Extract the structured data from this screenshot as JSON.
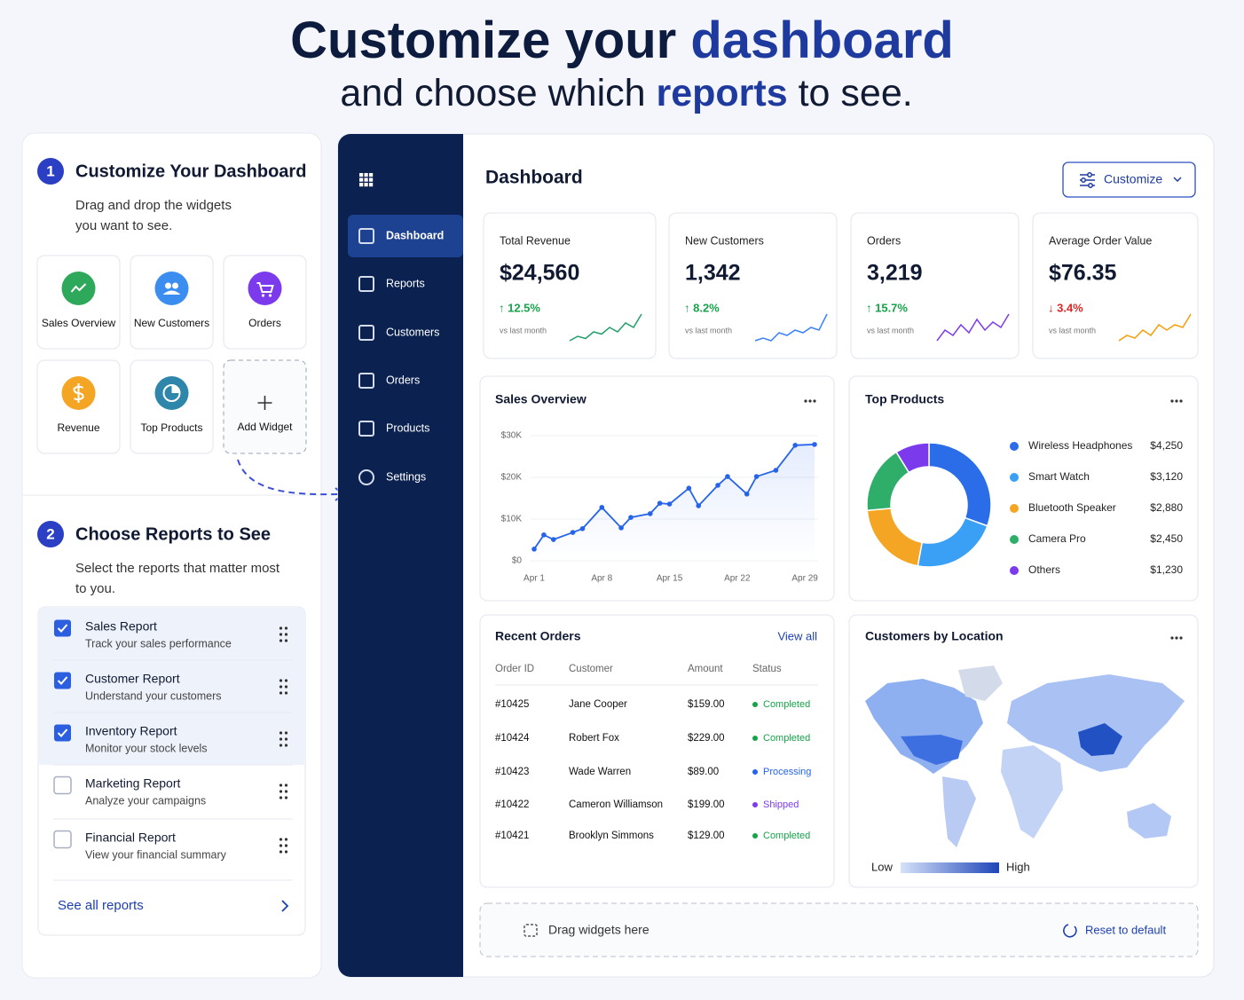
{
  "header": {
    "title_start": "Customize your ",
    "title_highlight": "dashboard",
    "subtitle_start": "and choose which ",
    "subtitle_highlight": "reports",
    "subtitle_end": " to see."
  },
  "steps": [
    {
      "number": "1",
      "title": "Customize Your Dashboard",
      "description": [
        "Drag and drop the widgets",
        "you want to see."
      ],
      "widgets": [
        {
          "label": "Sales Overview",
          "color": "#2ea85a"
        },
        {
          "label": "New Customers",
          "color": "#3b8ef0"
        },
        {
          "label": "Orders",
          "color": "#7c3aed"
        },
        {
          "label": "Revenue",
          "color": "#f5a524"
        },
        {
          "label": "Top Products",
          "color": "#2e86ab"
        }
      ],
      "add_widget": "Add Widget"
    },
    {
      "number": "2",
      "title": "Choose Reports to See",
      "description": [
        "Select the reports that matter most",
        "to you."
      ],
      "reports": [
        {
          "name": "Sales Report",
          "description": "Track your sales performance",
          "checked": true
        },
        {
          "name": "Customer Report",
          "description": "Understand your customers",
          "checked": true
        },
        {
          "name": "Inventory Report",
          "description": "Monitor your stock levels",
          "checked": true
        },
        {
          "name": "Marketing Report",
          "description": "Analyze your campaigns",
          "checked": false
        },
        {
          "name": "Financial Report",
          "description": "View your financial summary",
          "checked": false
        }
      ],
      "see_all": "See all reports"
    }
  ],
  "sidebar": {
    "items": [
      {
        "label": "Dashboard",
        "active": true
      },
      {
        "label": "Reports",
        "active": false
      },
      {
        "label": "Customers",
        "active": false
      },
      {
        "label": "Orders",
        "active": false
      },
      {
        "label": "Products",
        "active": false
      },
      {
        "label": "Settings",
        "active": false
      }
    ]
  },
  "dashboard": {
    "title": "Dashboard",
    "customize": "Customize",
    "kpis": [
      {
        "label": "Total Revenue",
        "value": "$24,560",
        "change": "↑ 12.5%",
        "change_color": "#16a34a",
        "note": "vs last month",
        "trend": [
          3,
          4,
          3.5,
          5,
          4.5,
          6,
          5,
          7,
          6,
          9
        ],
        "trend_color": "#22a06b"
      },
      {
        "label": "New Customers",
        "value": "1,342",
        "change": "↑ 8.2%",
        "change_color": "#16a34a",
        "note": "vs last month",
        "trend": [
          3,
          3.5,
          3,
          4.5,
          4,
          5,
          4.5,
          5.5,
          5,
          8
        ],
        "trend_color": "#3b82f6"
      },
      {
        "label": "Orders",
        "value": "3,219",
        "change": "↑ 15.7%",
        "change_color": "#16a34a",
        "note": "vs last month",
        "trend": [
          3,
          5,
          4,
          6,
          4.5,
          7,
          5,
          6.5,
          5.5,
          8
        ],
        "trend_color": "#7c3aed"
      },
      {
        "label": "Average Order Value",
        "value": "$76.35",
        "change": "↓ 3.4%",
        "change_color": "#dc2626",
        "note": "vs last month",
        "trend": [
          3,
          4,
          3.5,
          5,
          4,
          6,
          5,
          6,
          5.5,
          8
        ],
        "trend_color": "#f59e0b"
      }
    ],
    "sales_overview": {
      "type": "line",
      "title": "Sales Overview",
      "color": "#2563eb",
      "grid": true,
      "x": [
        1,
        2,
        3,
        5,
        6,
        8,
        10,
        11,
        13,
        14,
        15,
        17,
        18,
        20,
        21,
        23,
        24,
        26,
        28,
        30
      ],
      "values": [
        2800,
        6200,
        5100,
        6800,
        7700,
        12800,
        7900,
        10400,
        11300,
        13800,
        13600,
        17400,
        13200,
        18100,
        20200,
        16000,
        20200,
        21700,
        27700,
        27900
      ],
      "xlim": [
        1,
        30
      ],
      "xticks": [
        {
          "value": 1,
          "label": "Apr 1"
        },
        {
          "value": 8,
          "label": "Apr 8"
        },
        {
          "value": 15,
          "label": "Apr 15"
        },
        {
          "value": 22,
          "label": "Apr 22"
        },
        {
          "value": 29,
          "label": "Apr 29"
        }
      ],
      "ylim": [
        0,
        30000
      ],
      "yticks": [
        {
          "value": 0,
          "label": "$0"
        },
        {
          "value": 10000,
          "label": "$10K"
        },
        {
          "value": 20000,
          "label": "$20K"
        },
        {
          "value": 30000,
          "label": "$30K"
        }
      ]
    },
    "top_products": {
      "type": "pie",
      "title": "Top Products",
      "categories": [
        "Wireless Headphones",
        "Smart Watch",
        "Bluetooth Speaker",
        "Camera Pro",
        "Others"
      ],
      "values": [
        4250,
        3120,
        2880,
        2450,
        1230
      ],
      "value_labels": [
        "$4,250",
        "$3,120",
        "$2,880",
        "$2,450",
        "$1,230"
      ],
      "colors": [
        "#2b6de8",
        "#3aa0f5",
        "#f5a524",
        "#2fae6a",
        "#7c3aed"
      ]
    },
    "recent_orders": {
      "title": "Recent Orders",
      "view_all": "View all",
      "columns": [
        "Order ID",
        "Customer",
        "Amount",
        "Status"
      ],
      "rows": [
        [
          "#10425",
          "Jane Cooper",
          "$159.00",
          "Completed"
        ],
        [
          "#10424",
          "Robert Fox",
          "$229.00",
          "Completed"
        ],
        [
          "#10423",
          "Wade Warren",
          "$89.00",
          "Processing"
        ],
        [
          "#10422",
          "Cameron Williamson",
          "$199.00",
          "Shipped"
        ],
        [
          "#10421",
          "Brooklyn Simmons",
          "$129.00",
          "Completed"
        ]
      ],
      "status_colors": [
        "#16a34a",
        "#16a34a",
        "#2563eb",
        "#7c3aed",
        "#16a34a"
      ]
    },
    "customers_by_location": {
      "title": "Customers by Location",
      "legend_low": "Low",
      "legend_high": "High"
    },
    "drop_zone": {
      "text": "Drag widgets here",
      "reset": "Reset to default"
    }
  }
}
